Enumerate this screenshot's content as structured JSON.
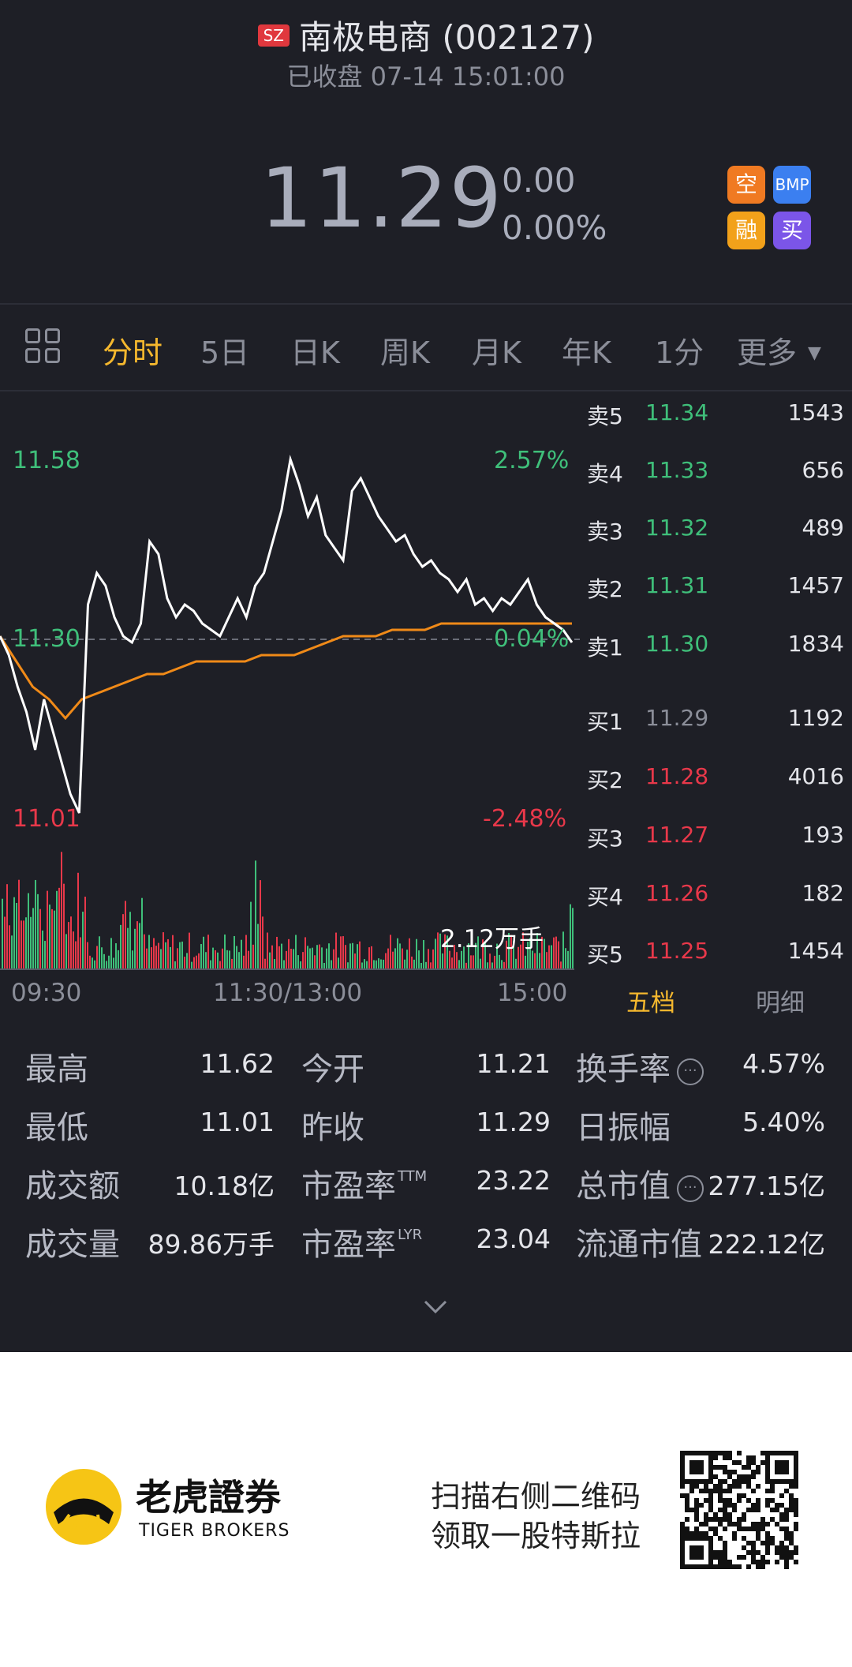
{
  "header": {
    "exchange_badge": "SZ",
    "title": "南极电商 (002127)",
    "status": "已收盘 07-14 15:01:00",
    "price": "11.29",
    "change": "0.00",
    "change_pct": "0.00%",
    "badges": [
      {
        "label": "空",
        "color": "#f07a22"
      },
      {
        "label": "BMP",
        "color": "#3b7ff0"
      },
      {
        "label": "融",
        "color": "#f2a11a"
      },
      {
        "label": "买",
        "color": "#7b55e8"
      }
    ]
  },
  "tabs": [
    "分时",
    "5日",
    "日K",
    "周K",
    "月K",
    "年K",
    "1分",
    "更多"
  ],
  "active_tab": "分时",
  "chart": {
    "high_label": "11.58",
    "mid_label": "11.30",
    "low_label": "11.01",
    "high_pct": "2.57%",
    "mid_pct": "0.04%",
    "low_pct": "-2.48%",
    "volume_label": "2.12万手",
    "time_labels": [
      "09:30",
      "11:30/13:00",
      "15:00"
    ]
  },
  "chart_data": {
    "type": "line",
    "title": "",
    "xlabel": "",
    "ylabel": "",
    "ylim": [
      11.01,
      11.58
    ],
    "series": [
      {
        "values": [
          11.3,
          11.27,
          11.22,
          11.18,
          11.12,
          11.2,
          11.15,
          11.1,
          11.05,
          11.02,
          11.35,
          11.4,
          11.38,
          11.33,
          11.3,
          11.29,
          11.32,
          11.45,
          11.43,
          11.36,
          11.33,
          11.35,
          11.34,
          11.32,
          11.31,
          11.3,
          11.33,
          11.36,
          11.33,
          11.38,
          11.4,
          11.45,
          11.5,
          11.58,
          11.54,
          11.49,
          11.52,
          11.46,
          11.44,
          11.42,
          11.53,
          11.55,
          11.52,
          11.49,
          11.47,
          11.45,
          11.46,
          11.43,
          11.41,
          11.42,
          11.4,
          11.39,
          11.37,
          11.39,
          11.35,
          11.36,
          11.34,
          11.36,
          11.35,
          11.37,
          11.39,
          11.35,
          11.33,
          11.32,
          11.31,
          11.29
        ]
      },
      {
        "values": [
          11.3,
          11.26,
          11.22,
          11.2,
          11.17,
          11.2,
          11.21,
          11.22,
          11.23,
          11.24,
          11.24,
          11.25,
          11.26,
          11.26,
          11.26,
          11.26,
          11.27,
          11.27,
          11.27,
          11.28,
          11.29,
          11.3,
          11.3,
          11.3,
          11.31,
          11.31,
          11.31,
          11.32,
          11.32,
          11.32,
          11.32,
          11.32,
          11.32,
          11.32,
          11.32,
          11.32
        ]
      }
    ]
  },
  "order_book": [
    {
      "side": "卖5",
      "price": "11.34",
      "vol": "1543",
      "color": "#3fbf7a"
    },
    {
      "side": "卖4",
      "price": "11.33",
      "vol": "656",
      "color": "#3fbf7a"
    },
    {
      "side": "卖3",
      "price": "11.32",
      "vol": "489",
      "color": "#3fbf7a"
    },
    {
      "side": "卖2",
      "price": "11.31",
      "vol": "1457",
      "color": "#3fbf7a"
    },
    {
      "side": "卖1",
      "price": "11.30",
      "vol": "1834",
      "color": "#3fbf7a"
    },
    {
      "side": "买1",
      "price": "11.29",
      "vol": "1192",
      "color": "#8b8e99"
    },
    {
      "side": "买2",
      "price": "11.28",
      "vol": "4016",
      "color": "#e8384a"
    },
    {
      "side": "买3",
      "price": "11.27",
      "vol": "193",
      "color": "#e8384a"
    },
    {
      "side": "买4",
      "price": "11.26",
      "vol": "182",
      "color": "#e8384a"
    },
    {
      "side": "买5",
      "price": "11.25",
      "vol": "1454",
      "color": "#e8384a"
    }
  ],
  "order_book_tabs": [
    "五档",
    "明细"
  ],
  "stats": [
    {
      "label": "最高",
      "value": "11.62"
    },
    {
      "label": "今开",
      "value": "11.21"
    },
    {
      "label": "换手率",
      "value": "4.57%"
    },
    {
      "label": "最低",
      "value": "11.01"
    },
    {
      "label": "昨收",
      "value": "11.29"
    },
    {
      "label": "日振幅",
      "value": "5.40%"
    },
    {
      "label": "成交额",
      "value": "10.18亿"
    },
    {
      "label": "市盈率",
      "value": "23.22",
      "sup": "TTM"
    },
    {
      "label": "总市值",
      "value": "277.15亿"
    },
    {
      "label": "成交量",
      "value": "89.86万手"
    },
    {
      "label": "市盈率",
      "value": "23.04",
      "sup": "LYR"
    },
    {
      "label": "流通市值",
      "value": "222.12亿"
    }
  ],
  "footer": {
    "brand_cn": "老虎證券",
    "brand_en": "TIGER BROKERS",
    "promo_line1": "扫描右侧二维码",
    "promo_line2": "领取一股特斯拉"
  }
}
